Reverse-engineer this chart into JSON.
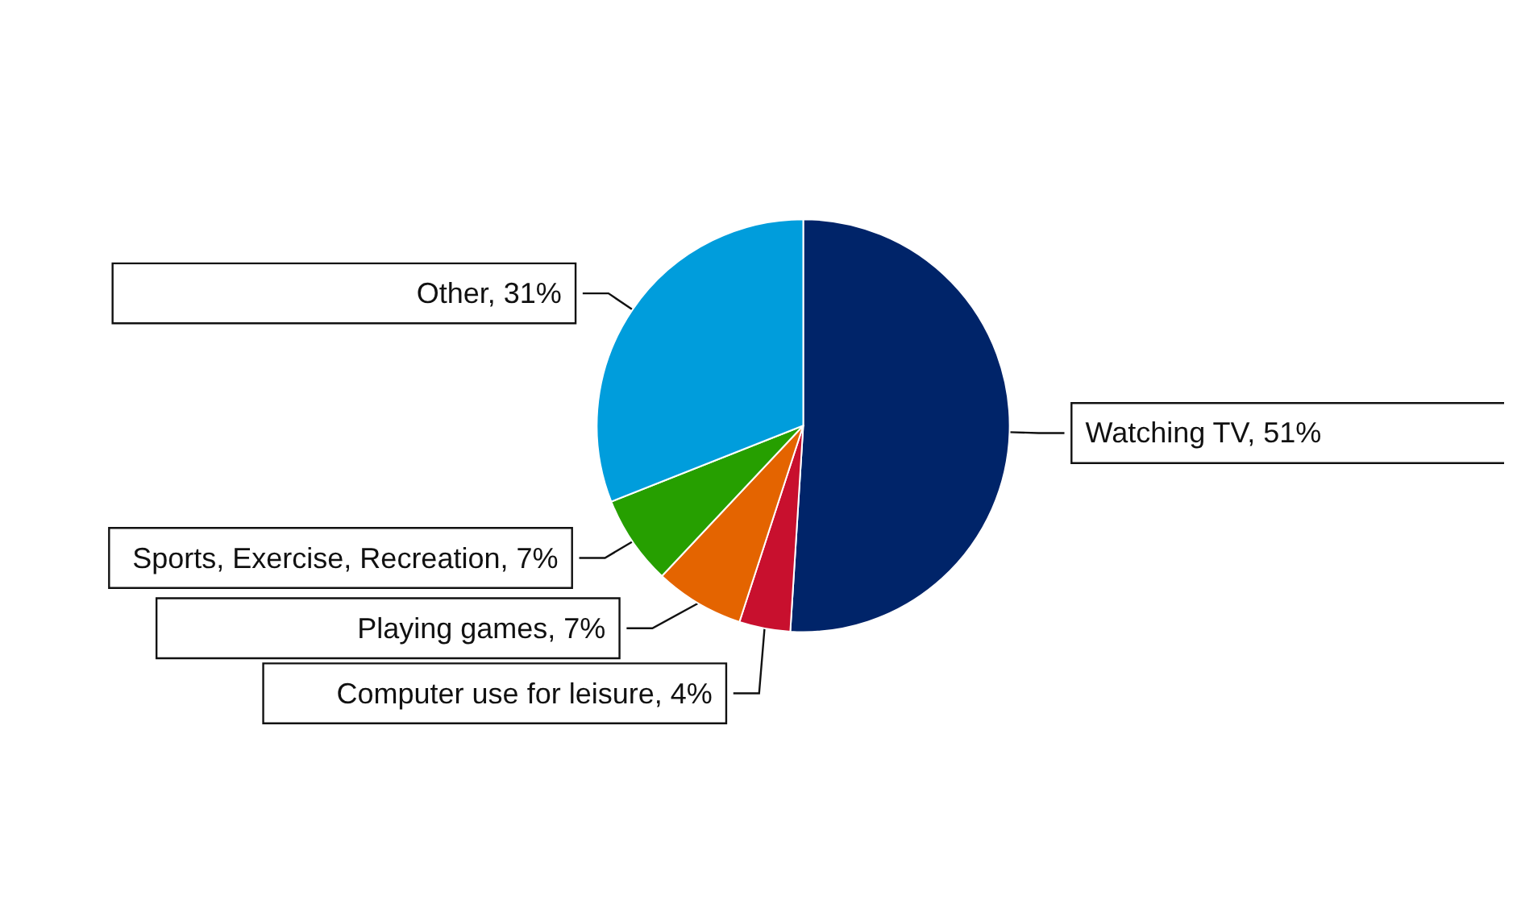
{
  "chart_data": {
    "type": "pie",
    "categories": [
      "Watching TV",
      "Computer use for leisure",
      "Playing games",
      "Sports, Exercise, Recreation",
      "Other"
    ],
    "values": [
      51,
      4,
      7,
      7,
      31
    ],
    "value_labels": [
      "51%",
      "4%",
      "7%",
      "7%",
      "31%"
    ],
    "colors": [
      "#002469",
      "#c8102e",
      "#e46400",
      "#269f00",
      "#009ddc"
    ],
    "legend": false
  }
}
